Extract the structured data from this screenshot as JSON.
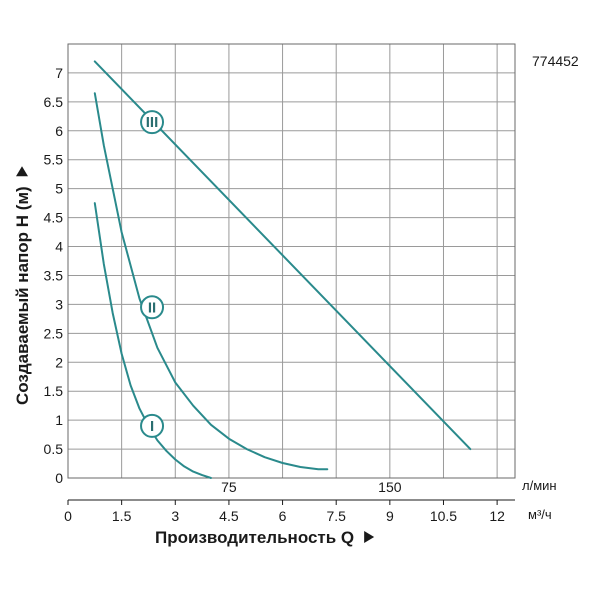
{
  "chart_data": {
    "type": "line",
    "id_code": "774452",
    "xlabel": "Производительность Q",
    "ylabel": "Создаваемый напор H (м)",
    "x_unit_primary": "м³/ч",
    "x_unit_secondary": "л/мин",
    "xlim": [
      0,
      12.5
    ],
    "ylim": [
      0,
      7.5
    ],
    "x_ticks": [
      "0",
      "1.5",
      "3",
      "4.5",
      "6",
      "7.5",
      "9",
      "10.5",
      "12"
    ],
    "x_tick_values": [
      0,
      1.5,
      3,
      4.5,
      6,
      7.5,
      9,
      10.5,
      12
    ],
    "x_secondary_ticks": [
      {
        "label": "75",
        "value": 4.5
      },
      {
        "label": "150",
        "value": 9
      }
    ],
    "y_ticks": [
      "0",
      "0.5",
      "1",
      "1.5",
      "2",
      "2.5",
      "3",
      "3.5",
      "4",
      "4.5",
      "5",
      "5.5",
      "6",
      "6.5",
      "7"
    ],
    "y_tick_values": [
      0,
      0.5,
      1,
      1.5,
      2,
      2.5,
      3,
      3.5,
      4,
      4.5,
      5,
      5.5,
      6,
      6.5,
      7
    ],
    "grid": true,
    "line_color": "#2a8a8c",
    "grid_color": "#9a9a9a",
    "series": [
      {
        "name": "I",
        "x": [
          0.75,
          1.0,
          1.25,
          1.5,
          1.75,
          2.0,
          2.25,
          2.5,
          2.75,
          3.0,
          3.25,
          3.5,
          3.75,
          4.0
        ],
        "y": [
          4.75,
          3.7,
          2.85,
          2.15,
          1.6,
          1.2,
          0.9,
          0.65,
          0.47,
          0.32,
          0.2,
          0.11,
          0.05,
          0.0
        ],
        "label_at": [
          2.35,
          0.9
        ]
      },
      {
        "name": "II",
        "x": [
          0.75,
          1.0,
          1.5,
          2.0,
          2.5,
          3.0,
          3.5,
          4.0,
          4.5,
          5.0,
          5.5,
          6.0,
          6.5,
          7.0,
          7.25
        ],
        "y": [
          6.65,
          5.75,
          4.25,
          3.1,
          2.25,
          1.65,
          1.25,
          0.92,
          0.68,
          0.5,
          0.36,
          0.26,
          0.19,
          0.15,
          0.15
        ],
        "label_at": [
          2.35,
          2.95
        ]
      },
      {
        "name": "III",
        "x": [
          0.75,
          11.25
        ],
        "y": [
          7.2,
          0.5
        ],
        "label_at": [
          2.35,
          6.15
        ]
      }
    ]
  }
}
